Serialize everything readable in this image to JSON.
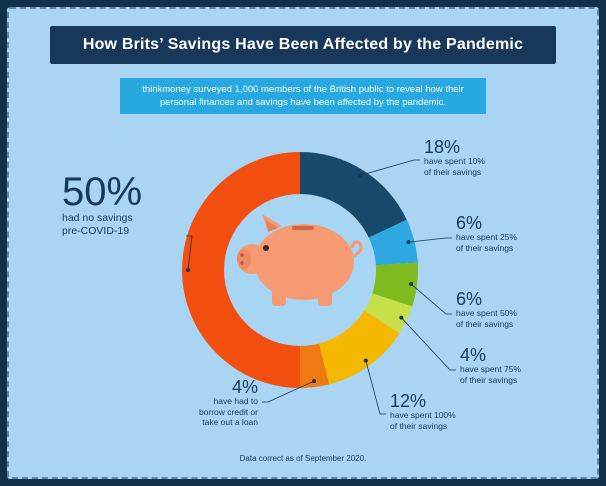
{
  "title": "How Brits’ Savings Have Been Affected by the Pandemic",
  "intro": "thinkmoney surveyed 1,000 members of the British public to reveal how their personal finances and savings have been affected by the pandemic.",
  "footnote": "Data correct as of September 2020.",
  "chart_data": {
    "type": "pie",
    "subtype": "donut",
    "center_icon": "piggy-bank-icon",
    "slices": [
      {
        "value": 18,
        "label_pct": "18%",
        "label": "have spent 10% of their savings",
        "line1": "have spent 10%",
        "line2": "of their savings",
        "color": "#17496b"
      },
      {
        "value": 6,
        "label_pct": "6%",
        "label": "have spent 25% of their savings",
        "line1": "have spent 25%",
        "line2": "of their savings",
        "color": "#2ea8e0"
      },
      {
        "value": 6,
        "label_pct": "6%",
        "label": "have spent 50% of their savings",
        "line1": "have spent 50%",
        "line2": "of their savings",
        "color": "#7dbb1f"
      },
      {
        "value": 4,
        "label_pct": "4%",
        "label": "have spent 75% of their savings",
        "line1": "have spent 75%",
        "line2": "of their savings",
        "color": "#c9df4a"
      },
      {
        "value": 12,
        "label_pct": "12%",
        "label": "have spent 100% of their savings",
        "line1": "have spent 100%",
        "line2": "of their savings",
        "color": "#f5b800"
      },
      {
        "value": 4,
        "label_pct": "4%",
        "label": "have had to borrow credit or take out a loan",
        "line1": "have had to",
        "line2": "borrow credit or",
        "line3": "take out a loan",
        "color": "#f07a12"
      },
      {
        "value": 50,
        "label_pct": "50%",
        "label": "had no savings pre-COVID-19",
        "line1": "had no savings",
        "line2": "pre-COVID-19",
        "color": "#f24e10"
      }
    ]
  }
}
